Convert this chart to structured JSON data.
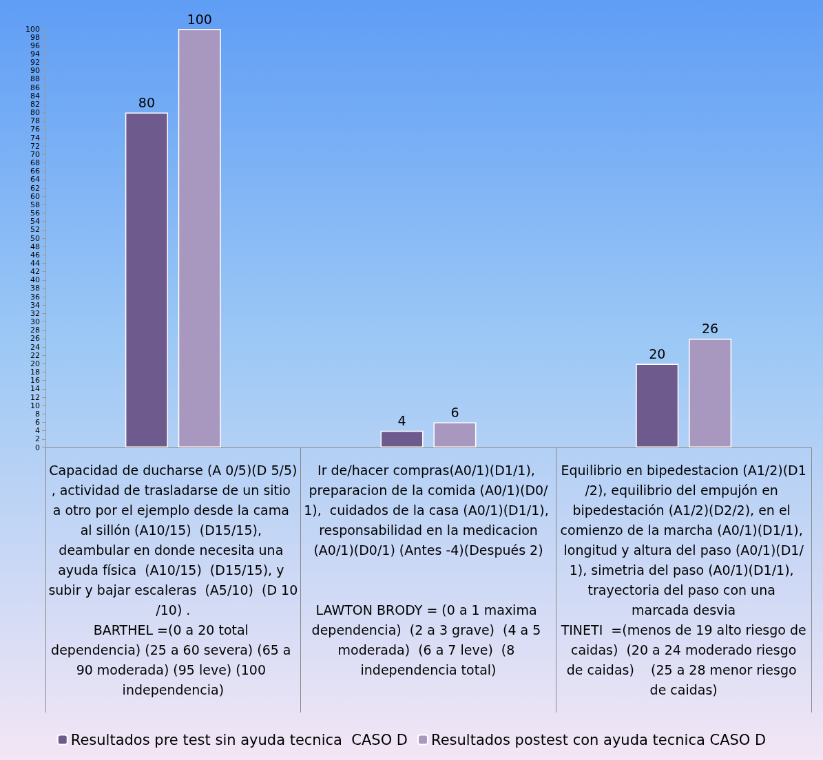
{
  "chart_data": {
    "type": "bar",
    "categories": [
      "Capacidad de ducharse (A 0/5)(D 5/5), actividad de trasladarse de un sitio a otro por el ejemplo desde la cama al sillón (A10/15)  (D15/15), deambular en donde necesita una ayuda física  (A10/15)  (D15/15), y subir y bajar escaleras  (A5/10)  (D 10/10) .\nBARTHEL =(0 a 20 total dependencia) (25 a 60 severa) (65 a 90 moderada) (95 leve) (100 independencia)",
      "Ir de/hacer compras(A0/1)(D1/1), preparacion de la comida (A0/1)(D0/1),  cuidados de la casa (A0/1)(D1/1),  responsabilidad en la medicacion (A0/1)(D0/1) (Antes -4)(Después 2)\n\n\nLAWTON BRODY = (0 a 1 maxima dependencia)  (2 a 3 grave)  (4 a 5 moderada)  (6 a 7 leve)  (8 independencia total)",
      "Equilibrio en bipedestacion (A1/2)(D1/2), equilibrio del empujón en bipedestación (A1/2)(D2/2), en el comienzo de la marcha (A0/1)(D1/1), longitud y altura del paso (A0/1)(D1/1), simetria del paso (A0/1)(D1/1), trayectoria del paso con una marcada desvia\nTINETI  =(menos de 19 alto riesgo de caidas)  (20 a 24 moderado riesgo de caidas)    (25 a 28 menor riesgo de caidas)"
    ],
    "series": [
      {
        "name": "Resultados pre test sin ayuda tecnica  CASO D",
        "color": "#6f5a8e",
        "values": [
          80,
          4,
          20
        ]
      },
      {
        "name": "Resultados postest con ayuda tecnica CASO D",
        "color": "#a898c0",
        "values": [
          100,
          6,
          26
        ]
      }
    ],
    "ylim": [
      0,
      100
    ],
    "yticks": [
      0,
      2,
      4,
      6,
      8,
      10,
      12,
      14,
      16,
      18,
      20,
      22,
      24,
      26,
      28,
      30,
      32,
      34,
      36,
      38,
      40,
      42,
      44,
      46,
      48,
      50,
      52,
      54,
      56,
      58,
      60,
      62,
      64,
      66,
      68,
      70,
      72,
      74,
      76,
      78,
      80,
      82,
      84,
      86,
      88,
      90,
      92,
      94,
      96,
      98,
      100
    ],
    "data_labels": true,
    "legend": "bottom",
    "grid": false
  }
}
